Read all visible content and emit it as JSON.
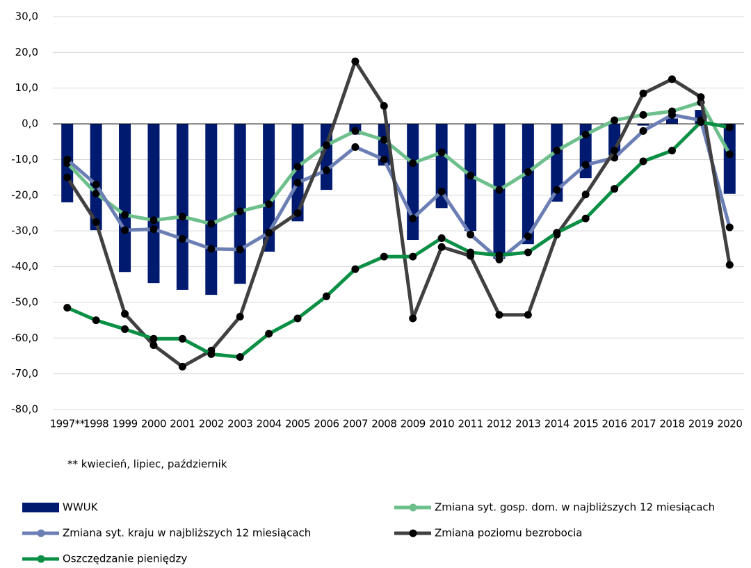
{
  "chart_data": {
    "type": "bar-line",
    "categories": [
      "1997**",
      "1998",
      "1999",
      "2000",
      "2001",
      "2002",
      "2003",
      "2004",
      "2005",
      "2006",
      "2007",
      "2008",
      "2009",
      "2010",
      "2011",
      "2012",
      "2013",
      "2014",
      "2015",
      "2016",
      "2017",
      "2018",
      "2019",
      "2020"
    ],
    "series": [
      {
        "name": "WWUK",
        "type": "bar",
        "color": "#001a70",
        "values": [
          -22,
          -29.8,
          -41.5,
          -44.6,
          -46.5,
          -47.9,
          -44.8,
          -35.8,
          -27.3,
          -18.5,
          -3,
          -11.7,
          -32.5,
          -23.6,
          -30,
          -37.8,
          -33.7,
          -21.8,
          -15.2,
          -8.8,
          -0.5,
          1.5,
          3.9,
          -19.6
        ]
      },
      {
        "name": "Zmiana syt. gosp. dom. w najbliższych 12 miesiącach",
        "type": "line",
        "color": "#6dbf8b",
        "values": [
          -11,
          -19.5,
          -25.5,
          -27,
          -26,
          -28,
          -24.5,
          -22.5,
          -12,
          -6,
          -2,
          -4.5,
          -11,
          -8,
          -14.5,
          -18.5,
          -13.5,
          -7.5,
          -3,
          1,
          2.5,
          3.5,
          6,
          -8.5
        ]
      },
      {
        "name": "Zmiana syt. kraju w najbliższych 12 miesiącach",
        "type": "line",
        "color": "#6b7fb5",
        "values": [
          -10,
          -17,
          -29.8,
          -29.5,
          -32.2,
          -35,
          -35.2,
          -30.5,
          -16.5,
          -13,
          -6.5,
          -10,
          -26.5,
          -19,
          -31,
          -38,
          -31.5,
          -18.5,
          -11.5,
          -9.5,
          -2,
          2.5,
          1,
          -29
        ]
      },
      {
        "name": "Zmiana poziomu bezrobocia",
        "type": "line",
        "color": "#404040",
        "values": [
          -15,
          -27.5,
          -53.2,
          -62,
          -68,
          -63.5,
          -54,
          -30.5,
          -25,
          -6,
          17.5,
          5,
          -54.5,
          -34.5,
          -37,
          -53.5,
          -53.5,
          -31,
          -19.8,
          -7.5,
          8.5,
          12.5,
          7.5,
          -39.5
        ]
      },
      {
        "name": "Oszczędzanie pieniędzy",
        "type": "line",
        "color": "#0a8f45",
        "values": [
          -51.5,
          -55,
          -57.5,
          -60.2,
          -60.2,
          -64.5,
          -65.3,
          -58.8,
          -54.5,
          -48.3,
          -40.7,
          -37.2,
          -37.2,
          -32,
          -36,
          -36.8,
          -36,
          -30.5,
          -26.5,
          -18.2,
          -10.5,
          -7.5,
          0.5,
          -1
        ]
      }
    ],
    "ylim": [
      -80,
      30
    ],
    "yticks": [
      {
        "value": -80,
        "label": "-80,0"
      },
      {
        "value": -70,
        "label": "-70,0"
      },
      {
        "value": -60,
        "label": "-60,0"
      },
      {
        "value": -50,
        "label": "-50,0"
      },
      {
        "value": -40,
        "label": "-40,0"
      },
      {
        "value": -30,
        "label": "-30,0"
      },
      {
        "value": -20,
        "label": "-20,0"
      },
      {
        "value": -10,
        "label": "-10,0"
      },
      {
        "value": 0,
        "label": "0,0"
      },
      {
        "value": 10,
        "label": "10,0"
      },
      {
        "value": 20,
        "label": "20,0"
      },
      {
        "value": 30,
        "label": "30,0"
      }
    ],
    "grid": true,
    "note": "** kwiecień, lipiec, październik"
  }
}
